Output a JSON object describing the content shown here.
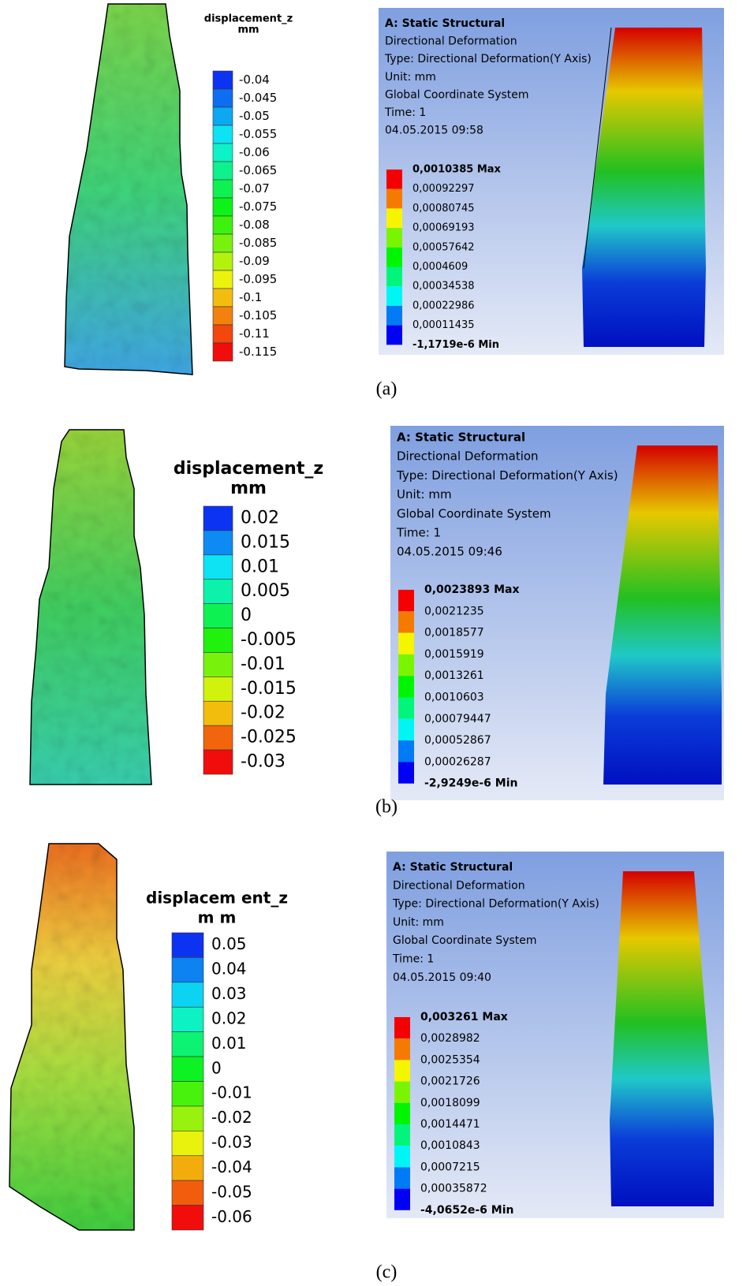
{
  "panels": [
    {
      "contour": {
        "title": "displacement_z",
        "unit": "mm",
        "labels": [
          "-0.04",
          "-0.045",
          "-0.05",
          "-0.055",
          "-0.06",
          "-0.065",
          "-0.07",
          "-0.075",
          "-0.08",
          "-0.085",
          "-0.09",
          "-0.095",
          "-0.1",
          "-0.105",
          "-0.11",
          "-0.115"
        ]
      },
      "ansys": {
        "lines": [
          "A: Static Structural",
          "Directional Deformation",
          "Type: Directional Deformation(Y Axis)",
          "Unit: mm",
          "Global Coordinate System",
          "Time: 1",
          "04.05.2015 09:58"
        ],
        "legend": [
          "0,0010385 Max",
          "0,00092297",
          "0,00080745",
          "0,00069193",
          "0,00057642",
          "0,0004609",
          "0,00034538",
          "0,00022986",
          "0,00011435",
          "-1,1719e-6 Min"
        ]
      },
      "caption": "(a)"
    },
    {
      "contour": {
        "title": "displacement_z",
        "unit": "mm",
        "labels": [
          "0.02",
          "0.015",
          "0.01",
          "0.005",
          "0",
          "-0.005",
          "-0.01",
          "-0.015",
          "-0.02",
          "-0.025",
          "-0.03"
        ]
      },
      "ansys": {
        "lines": [
          "A: Static Structural",
          "Directional Deformation",
          "Type: Directional Deformation(Y Axis)",
          "Unit: mm",
          "Global Coordinate System",
          "Time: 1",
          "04.05.2015 09:46"
        ],
        "legend": [
          "0,0023893 Max",
          "0,0021235",
          "0,0018577",
          "0,0015919",
          "0,0013261",
          "0,0010603",
          "0,00079447",
          "0,00052867",
          "0,00026287",
          "-2,9249e-6 Min"
        ]
      },
      "caption": "(b)"
    },
    {
      "contour": {
        "title": "displacem ent_z",
        "unit": "m m",
        "labels": [
          "0.05",
          "0.04",
          "0.03",
          "0.02",
          "0.01",
          "0",
          "-0.01",
          "-0.02",
          "-0.03",
          "-0.04",
          "-0.05",
          "-0.06"
        ]
      },
      "ansys": {
        "lines": [
          "A: Static Structural",
          "Directional Deformation",
          "Type: Directional Deformation(Y Axis)",
          "Unit: mm",
          "Global Coordinate System",
          "Time: 1",
          "04.05.2015 09:40"
        ],
        "legend": [
          "0,003261 Max",
          "0,0028982",
          "0,0025354",
          "0,0021726",
          "0,0018099",
          "0,0014471",
          "0,0010843",
          "0,0007215",
          "0,00035872",
          "-4,0652e-6 Min"
        ]
      },
      "caption": "(c)"
    }
  ]
}
